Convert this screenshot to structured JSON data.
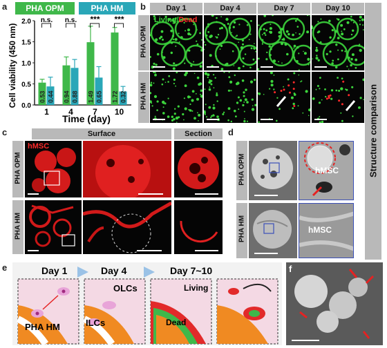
{
  "panels": {
    "a": "a",
    "b": "b",
    "c": "c",
    "d": "d",
    "e": "e",
    "f": "f"
  },
  "legend": [
    {
      "label": "PHA OPM",
      "color": "#3fb84a"
    },
    {
      "label": "PHA HM",
      "color": "#2aa7b8"
    }
  ],
  "chart_data": {
    "type": "bar",
    "categories": [
      "1",
      "4",
      "7",
      "10"
    ],
    "series": [
      {
        "name": "PHA OPM",
        "values": [
          0.53,
          0.94,
          1.49,
          1.72
        ],
        "errors": [
          0.08,
          0.2,
          0.38,
          0.12
        ],
        "color": "#3fb84a"
      },
      {
        "name": "PHA HM",
        "values": [
          0.44,
          0.88,
          0.65,
          0.32
        ],
        "errors": [
          0.22,
          0.2,
          0.26,
          0.12
        ],
        "color": "#2aa7b8"
      }
    ],
    "value_labels": [
      [
        "0.53",
        "0.44"
      ],
      [
        "0.94",
        "0.88"
      ],
      [
        "1.49",
        "0.65"
      ],
      [
        "1.72",
        "0.32"
      ]
    ],
    "significance": [
      "n.s.",
      "n.s.",
      "***",
      "***"
    ],
    "xlabel": "Time (day)",
    "ylabel": "Cell viability (450 nm)",
    "ylim": [
      0,
      2.0
    ],
    "yticks": [
      "0.0",
      "0.5",
      "1.0",
      "1.5",
      "2.0"
    ],
    "grid": false
  },
  "b": {
    "days": [
      "Day 1",
      "Day 4",
      "Day 7",
      "Day 10"
    ],
    "stain_living": "Living",
    "stain_slash": "/",
    "stain_dead": "Dead",
    "rows": [
      "PHA OPM",
      "PHA HM"
    ]
  },
  "c": {
    "headers": [
      "Surface",
      "Section"
    ],
    "stain": "hMSC",
    "rows": [
      "PHA OPM",
      "PHA HM"
    ]
  },
  "d": {
    "rows": [
      "PHA OPM",
      "PHA HM"
    ],
    "label_top": "hMSC",
    "label_bottom": "hMSC"
  },
  "side_title": "Structure comparison",
  "e": {
    "stages": [
      "Day 1",
      "Day 4",
      "Day 7~10"
    ],
    "labels": {
      "pha": "PHA HM",
      "olcs": "OLCs",
      "ilcs": "ILCs",
      "living": "Living",
      "dead": "Dead"
    }
  },
  "colors": {
    "living": "#3cd43c",
    "dead": "#ff2a2a",
    "arrow": "#9ac2e6"
  }
}
